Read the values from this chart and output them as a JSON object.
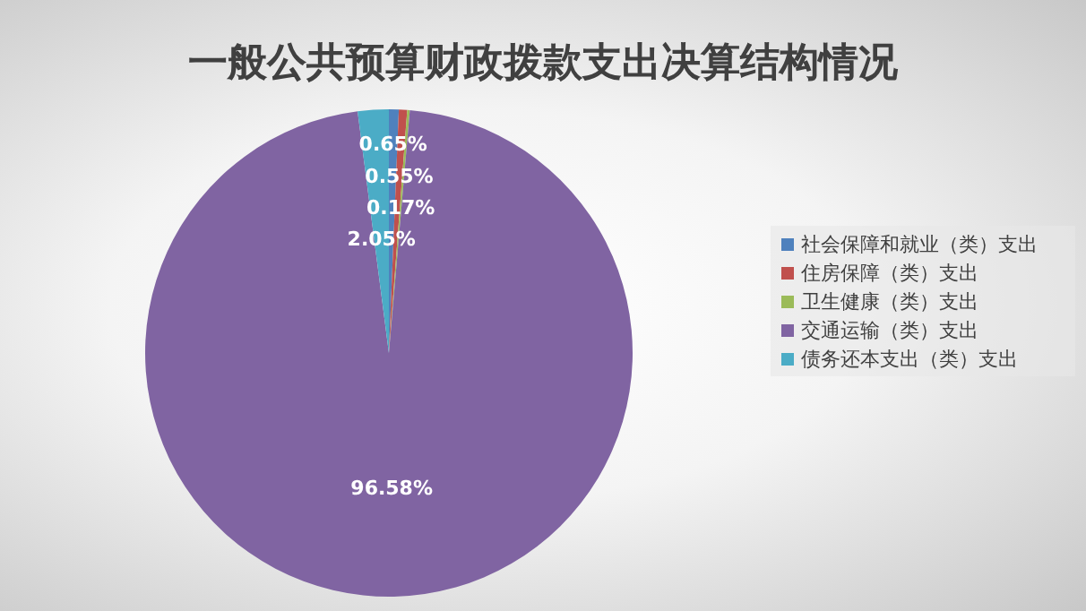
{
  "chart_data": {
    "type": "pie",
    "title": "一般公共预算财政拨款支出决算结构情况",
    "categories": [
      "社会保障和就业（类）支出",
      "住房保障（类）支出",
      "卫生健康（类）支出",
      "交通运输（类）支出",
      "债务还本支出（类）支出"
    ],
    "values": [
      0.65,
      0.55,
      0.17,
      96.58,
      2.05
    ],
    "colors": [
      "#4f81bd",
      "#c0504d",
      "#9bbb59",
      "#8064a2",
      "#4bacc6"
    ],
    "value_labels": [
      "0.65%",
      "0.55%",
      "0.17%",
      "96.58%",
      "2.05%"
    ],
    "legend": "right"
  }
}
